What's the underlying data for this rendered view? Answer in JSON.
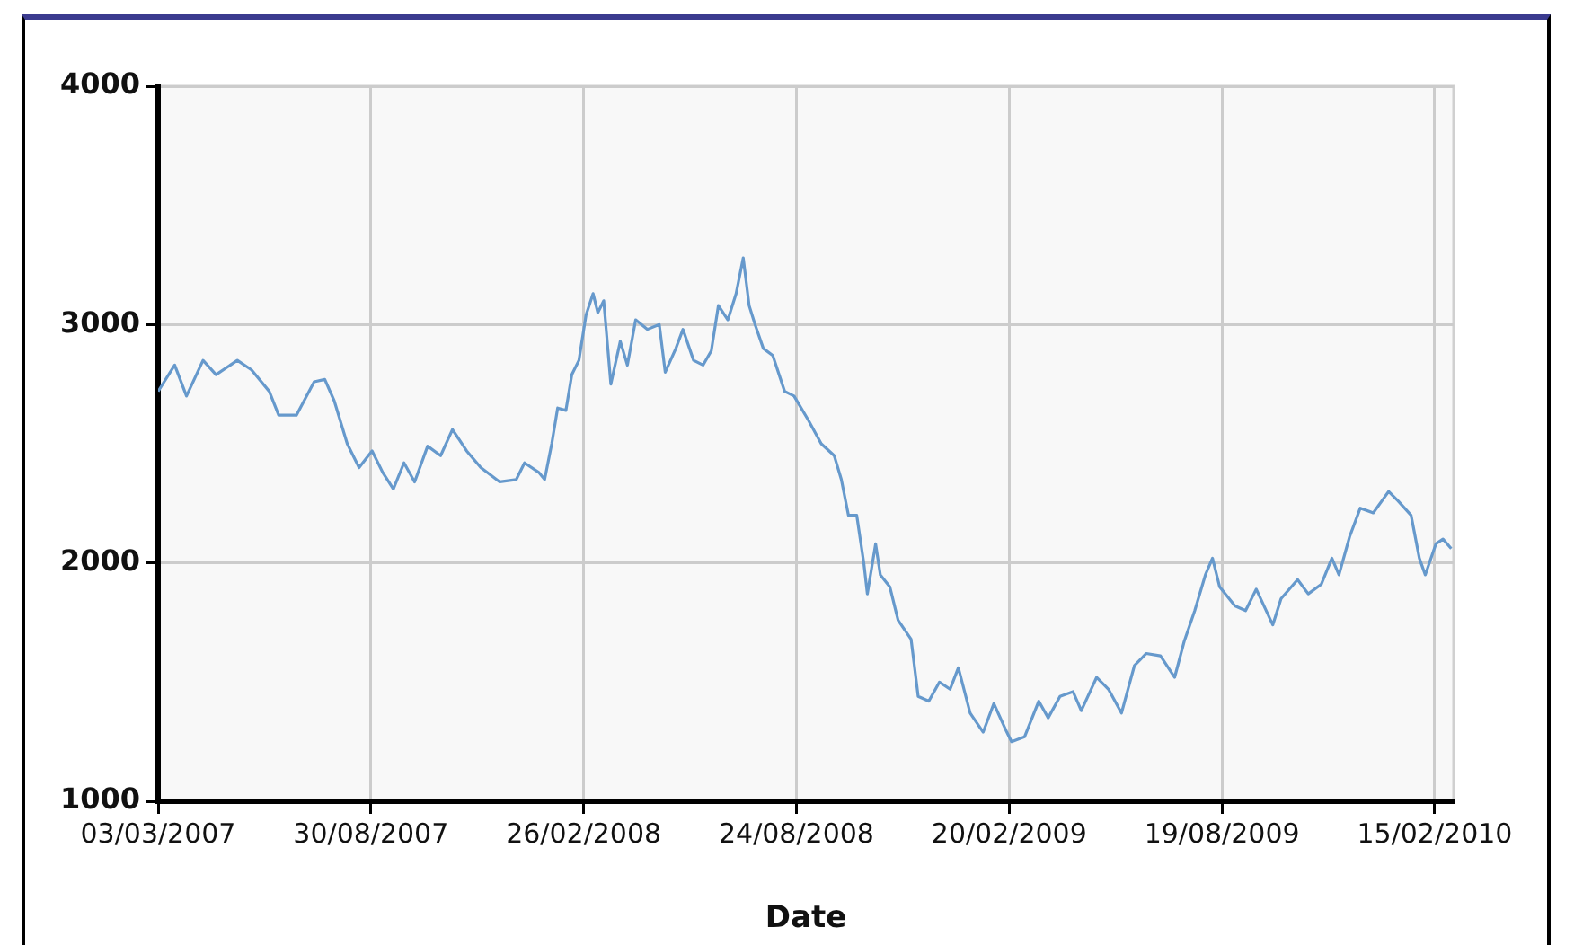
{
  "chart_data": {
    "type": "line",
    "xlabel": "Date",
    "grid": true,
    "marker": "none",
    "line_style": "solid",
    "xlim": [
      "2007-03-03",
      "2010-03-03"
    ],
    "xticks": [
      {
        "value": "2007-03-03",
        "label": "03/03/2007"
      },
      {
        "value": "2007-08-30",
        "label": "30/08/2007"
      },
      {
        "value": "2008-02-26",
        "label": "26/02/2008"
      },
      {
        "value": "2008-08-24",
        "label": "24/08/2008"
      },
      {
        "value": "2009-02-20",
        "label": "20/02/2009"
      },
      {
        "value": "2009-08-19",
        "label": "19/08/2009"
      },
      {
        "value": "2010-02-15",
        "label": "15/02/2010"
      }
    ],
    "ylim": [
      1000,
      4000
    ],
    "yticks": [
      1000,
      2000,
      3000,
      4000
    ],
    "x": [
      "2007-03-03",
      "2007-03-17",
      "2007-03-27",
      "2007-04-10",
      "2007-04-21",
      "2007-05-09",
      "2007-05-21",
      "2007-06-05",
      "2007-06-13",
      "2007-06-28",
      "2007-07-13",
      "2007-07-22",
      "2007-07-30",
      "2007-08-10",
      "2007-08-20",
      "2007-08-31",
      "2007-09-09",
      "2007-09-18",
      "2007-09-27",
      "2007-10-06",
      "2007-10-17",
      "2007-10-28",
      "2007-11-07",
      "2007-11-19",
      "2007-12-01",
      "2007-12-17",
      "2007-12-31",
      "2008-01-07",
      "2008-01-19",
      "2008-01-24",
      "2008-01-30",
      "2008-02-04",
      "2008-02-11",
      "2008-02-16",
      "2008-02-22",
      "2008-02-28",
      "2008-03-05",
      "2008-03-09",
      "2008-03-14",
      "2008-03-20",
      "2008-03-28",
      "2008-04-03",
      "2008-04-10",
      "2008-04-20",
      "2008-04-30",
      "2008-05-05",
      "2008-05-14",
      "2008-05-20",
      "2008-05-29",
      "2008-06-06",
      "2008-06-13",
      "2008-06-19",
      "2008-06-27",
      "2008-07-04",
      "2008-07-10",
      "2008-07-15",
      "2008-07-20",
      "2008-07-27",
      "2008-08-04",
      "2008-08-14",
      "2008-08-22",
      "2008-09-03",
      "2008-09-14",
      "2008-09-25",
      "2008-10-01",
      "2008-10-07",
      "2008-10-14",
      "2008-10-20",
      "2008-10-23",
      "2008-10-30",
      "2008-11-03",
      "2008-11-11",
      "2008-11-18",
      "2008-11-29",
      "2008-12-05",
      "2008-12-14",
      "2008-12-23",
      "2009-01-01",
      "2009-01-08",
      "2009-01-18",
      "2009-01-29",
      "2009-02-07",
      "2009-02-18",
      "2009-02-22",
      "2009-03-05",
      "2009-03-17",
      "2009-03-25",
      "2009-04-04",
      "2009-04-15",
      "2009-04-22",
      "2009-05-05",
      "2009-05-15",
      "2009-05-26",
      "2009-06-06",
      "2009-06-16",
      "2009-06-28",
      "2009-07-10",
      "2009-07-18",
      "2009-07-27",
      "2009-08-05",
      "2009-08-11",
      "2009-08-17",
      "2009-08-30",
      "2009-09-08",
      "2009-09-17",
      "2009-10-01",
      "2009-10-08",
      "2009-10-22",
      "2009-10-31",
      "2009-11-11",
      "2009-11-20",
      "2009-11-26",
      "2009-12-05",
      "2009-12-14",
      "2009-12-25",
      "2010-01-07",
      "2010-01-15",
      "2010-01-26",
      "2010-02-02",
      "2010-02-07",
      "2010-02-16",
      "2010-02-22",
      "2010-03-01"
    ],
    "series": [
      {
        "color": "#6699cc",
        "values": [
          2720,
          2830,
          2700,
          2850,
          2790,
          2850,
          2810,
          2720,
          2620,
          2620,
          2760,
          2770,
          2680,
          2500,
          2400,
          2470,
          2380,
          2310,
          2420,
          2340,
          2490,
          2450,
          2560,
          2470,
          2400,
          2340,
          2350,
          2420,
          2380,
          2350,
          2500,
          2650,
          2640,
          2790,
          2850,
          3040,
          3130,
          3050,
          3100,
          2750,
          2930,
          2830,
          3020,
          2980,
          3000,
          2800,
          2900,
          2980,
          2850,
          2830,
          2890,
          3080,
          3020,
          3130,
          3280,
          3080,
          3000,
          2900,
          2870,
          2720,
          2700,
          2600,
          2500,
          2450,
          2350,
          2200,
          2200,
          2000,
          1870,
          2080,
          1950,
          1900,
          1760,
          1680,
          1440,
          1420,
          1500,
          1470,
          1560,
          1370,
          1290,
          1410,
          1290,
          1250,
          1270,
          1420,
          1350,
          1440,
          1460,
          1380,
          1520,
          1470,
          1370,
          1570,
          1620,
          1610,
          1520,
          1670,
          1800,
          1950,
          2020,
          1900,
          1820,
          1800,
          1890,
          1740,
          1850,
          1930,
          1870,
          1910,
          2020,
          1950,
          2110,
          2230,
          2210,
          2300,
          2260,
          2200,
          2020,
          1950,
          2080,
          2100,
          2060
        ]
      }
    ]
  }
}
